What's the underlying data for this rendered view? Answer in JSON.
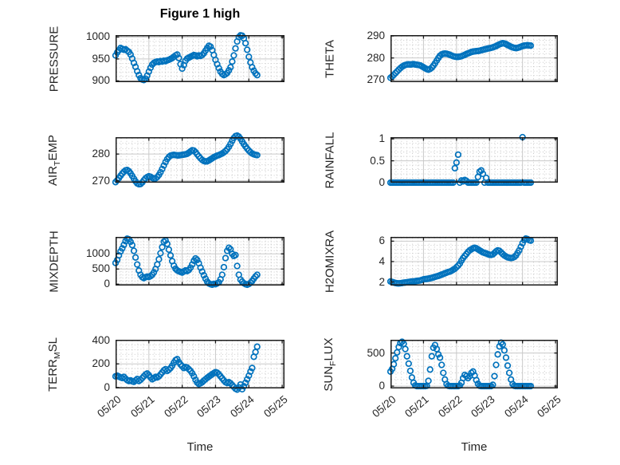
{
  "figure": {
    "title": "Figure 1 high",
    "xlabel": "Time",
    "marker_color": "#0072BD",
    "axis_color": "#1b1b1b",
    "grid_color": "#c9c9c9",
    "minor_grid_color": "#c4c4c4",
    "text_color": "#262626",
    "background": "#ffffff"
  },
  "chart_data": {
    "type": "scatter",
    "layout": "4x2-subplots",
    "marker": "open-circle",
    "grid": "major solid + dotted minor",
    "legend": "none",
    "x_unit": "days since 05/20",
    "xlim": [
      0,
      5.07
    ],
    "xticks": [
      0,
      1,
      2,
      3,
      4,
      5
    ],
    "xticklabels": [
      "05/20",
      "05/21",
      "05/22",
      "05/23",
      "05/24",
      "05/25"
    ],
    "x": [
      0,
      0.05,
      0.1,
      0.15,
      0.2,
      0.25,
      0.3,
      0.35,
      0.4,
      0.45,
      0.5,
      0.55,
      0.6,
      0.65,
      0.7,
      0.75,
      0.8,
      0.85,
      0.9,
      0.95,
      1,
      1.05,
      1.1,
      1.15,
      1.2,
      1.25,
      1.3,
      1.35,
      1.4,
      1.45,
      1.5,
      1.55,
      1.6,
      1.65,
      1.7,
      1.75,
      1.8,
      1.85,
      1.9,
      1.95,
      2,
      2.05,
      2.1,
      2.15,
      2.2,
      2.25,
      2.3,
      2.35,
      2.4,
      2.45,
      2.5,
      2.55,
      2.6,
      2.65,
      2.7,
      2.75,
      2.8,
      2.85,
      2.9,
      2.95,
      3,
      3.05,
      3.1,
      3.15,
      3.2,
      3.25,
      3.3,
      3.35,
      3.4,
      3.45,
      3.5,
      3.55,
      3.6,
      3.65,
      3.7,
      3.75,
      3.8,
      3.85,
      3.9,
      3.95,
      4,
      4.05,
      4.1,
      4.15,
      4.2,
      4.25
    ],
    "subplots": [
      {
        "name": "PRESSURE",
        "ylabel_pre": "PRESSURE",
        "ylabel_sub": "",
        "ylabel_post": "",
        "yticks": [
          900,
          950,
          1000
        ],
        "ylim": [
          897,
          1004.5
        ],
        "minor_step": 10,
        "y": [
          958,
          965,
          970,
          975,
          973,
          971,
          972,
          969,
          966,
          960,
          951,
          941,
          932,
          922,
          913,
          906,
          903,
          902,
          905,
          912,
          921,
          930,
          937,
          941,
          943,
          944,
          943,
          945,
          944,
          946,
          945,
          947,
          948,
          950,
          952,
          955,
          958,
          960,
          952,
          938,
          928,
          936,
          946,
          951,
          953,
          955,
          957,
          959,
          958,
          956,
          958,
          957,
          959,
          963,
          969,
          975,
          980,
          978,
          970,
          959,
          948,
          938,
          929,
          921,
          916,
          913,
          915,
          918,
          924,
          931,
          944,
          958,
          974,
          990,
          1000,
          1004,
          1003,
          997,
          986,
          971,
          955,
          942,
          931,
          923,
          917,
          913
        ]
      },
      {
        "name": "THETA",
        "ylabel_pre": "THETA",
        "ylabel_sub": "",
        "ylabel_post": "",
        "yticks": [
          270,
          280,
          290
        ],
        "ylim": [
          269,
          290.4
        ],
        "minor_step": 2,
        "y": [
          271,
          271.6,
          272.3,
          273.1,
          273.9,
          274.7,
          275.4,
          276,
          276.5,
          276.8,
          277,
          277.1,
          277,
          277.1,
          277.2,
          277,
          276.9,
          276.8,
          276.6,
          276.2,
          275.8,
          275.3,
          274.9,
          274.7,
          275,
          275.6,
          276.5,
          277.6,
          278.8,
          280,
          281,
          281.6,
          281.9,
          282,
          281.9,
          281.7,
          281.4,
          281.1,
          280.8,
          280.6,
          280.5,
          280.5,
          280.6,
          280.8,
          281.1,
          281.4,
          281.8,
          282.1,
          282.4,
          282.7,
          282.9,
          283,
          283.1,
          283.2,
          283.3,
          283.5,
          283.7,
          283.9,
          284.1,
          284.3,
          284.4,
          284.6,
          284.8,
          285.1,
          285.4,
          285.8,
          286.2,
          286.5,
          286.7,
          286.6,
          286.3,
          285.9,
          285.5,
          285.1,
          284.8,
          284.6,
          284.5,
          284.6,
          284.8,
          285.1,
          285.4,
          285.6,
          285.7,
          285.8,
          285.7,
          285.6
        ]
      },
      {
        "name": "AIR_TEMP",
        "ylabel_pre": "AIR",
        "ylabel_sub": "T",
        "ylabel_post": "EMP",
        "yticks": [
          270,
          280
        ],
        "ylim": [
          269.3,
          286.3
        ],
        "minor_step": 2,
        "y": [
          269.5,
          270.2,
          271,
          271.9,
          272.7,
          273.4,
          273.9,
          274,
          273.6,
          272.8,
          271.8,
          270.8,
          269.8,
          269,
          268.7,
          268.8,
          269.4,
          270.2,
          270.9,
          271.4,
          271.7,
          271.5,
          271.1,
          270.8,
          270.9,
          271.4,
          272.2,
          273.2,
          274.4,
          275.7,
          277,
          278.1,
          278.9,
          279.4,
          279.6,
          279.7,
          279.6,
          279.5,
          279.5,
          279.6,
          279.7,
          279.8,
          279.9,
          280.1,
          280.5,
          281,
          281.4,
          281.3,
          280.7,
          279.9,
          279.1,
          278.4,
          277.8,
          277.4,
          277.2,
          277.3,
          277.6,
          278,
          278.4,
          278.8,
          279.1,
          279.4,
          279.6,
          279.9,
          280.2,
          280.6,
          281.1,
          281.8,
          282.7,
          283.8,
          285,
          286,
          286.7,
          286.9,
          286.5,
          285.7,
          284.7,
          283.7,
          282.8,
          282,
          281.3,
          280.7,
          280.2,
          279.9,
          279.7,
          279.6
        ]
      },
      {
        "name": "RAINFALL",
        "ylabel_pre": "RAINFALL",
        "ylabel_sub": "",
        "ylabel_post": "",
        "yticks": [
          0,
          0.5,
          1
        ],
        "ylim": [
          0,
          1.04
        ],
        "minor_step": 0.1,
        "y": [
          0,
          0,
          0,
          0,
          0,
          0,
          0,
          0,
          0,
          0,
          0,
          0,
          0,
          0,
          0,
          0,
          0,
          0,
          0,
          0,
          0,
          0,
          0,
          0,
          0,
          0,
          0,
          0,
          0,
          0,
          0,
          0,
          0,
          0,
          0,
          0,
          0,
          0,
          0,
          0.33,
          0.46,
          0.64,
          0,
          0.05,
          0.03,
          0.06,
          0.04,
          0,
          0,
          0,
          0,
          0,
          0,
          0.13,
          0.25,
          0.28,
          0.2,
          0,
          0.11,
          0,
          0,
          0,
          0,
          0,
          0,
          0,
          0,
          0,
          0,
          0,
          0,
          0,
          0,
          0,
          0,
          0,
          0,
          0,
          0,
          0,
          1.04,
          0,
          0,
          0,
          0,
          0
        ]
      },
      {
        "name": "MIXDEPTH",
        "ylabel_pre": "MIXDEPTH",
        "ylabel_sub": "",
        "ylabel_post": "",
        "yticks": [
          0,
          500,
          1000
        ],
        "ylim": [
          -45,
          1560
        ],
        "minor_step": 100,
        "y": [
          700,
          800,
          950,
          1080,
          1180,
          1300,
          1420,
          1500,
          1480,
          1400,
          1290,
          1100,
          880,
          650,
          450,
          310,
          230,
          200,
          230,
          250,
          240,
          265,
          310,
          390,
          500,
          650,
          820,
          1020,
          1220,
          1400,
          1440,
          1330,
          1140,
          950,
          760,
          610,
          510,
          455,
          425,
          405,
          385,
          420,
          455,
          435,
          470,
          545,
          650,
          775,
          850,
          800,
          690,
          545,
          415,
          295,
          180,
          85,
          25,
          0,
          -15,
          10,
          0,
          25,
          60,
          160,
          310,
          560,
          860,
          1100,
          1200,
          1150,
          1000,
          930,
          960,
          600,
          310,
          150,
          80,
          30,
          0,
          -20,
          5,
          45,
          105,
          185,
          255,
          310
        ]
      },
      {
        "name": "H2OMIXRA",
        "ylabel_pre": "H2OMIXRA",
        "ylabel_sub": "",
        "ylabel_post": "",
        "yticks": [
          2,
          4,
          6
        ],
        "ylim": [
          1.65,
          6.42
        ],
        "minor_step": 0.4,
        "y": [
          2.05,
          2,
          1.95,
          1.9,
          1.87,
          1.86,
          1.88,
          1.9,
          1.93,
          1.95,
          1.97,
          2,
          2.02,
          2.05,
          2.05,
          2.08,
          2.1,
          2.12,
          2.15,
          2.2,
          2.25,
          2.28,
          2.3,
          2.33,
          2.36,
          2.4,
          2.45,
          2.5,
          2.55,
          2.6,
          2.65,
          2.72,
          2.78,
          2.85,
          2.92,
          2.98,
          3.02,
          3.1,
          3.2,
          3.3,
          3.45,
          3.6,
          3.8,
          4.1,
          4.35,
          4.55,
          4.75,
          4.95,
          5.1,
          5.2,
          5.3,
          5.35,
          5.3,
          5.2,
          5.1,
          5,
          4.9,
          4.85,
          4.8,
          4.72,
          4.67,
          4.65,
          4.7,
          4.85,
          5,
          5.1,
          5.05,
          4.9,
          4.75,
          4.6,
          4.5,
          4.42,
          4.38,
          4.35,
          4.38,
          4.45,
          4.6,
          4.85,
          5.1,
          5.45,
          5.8,
          6.1,
          6.25,
          6.2,
          6.1,
          6.05
        ]
      },
      {
        "name": "TERR_MSL",
        "ylabel_pre": "TERR",
        "ylabel_sub": "M",
        "ylabel_post": "SL",
        "yticks": [
          0,
          200,
          400
        ],
        "ylim": [
          -8,
          404
        ],
        "minor_step": 40,
        "y": [
          95,
          100,
          92,
          85,
          80,
          90,
          75,
          62,
          55,
          60,
          52,
          48,
          60,
          72,
          55,
          65,
          80,
          95,
          110,
          118,
          105,
          85,
          70,
          78,
          90,
          85,
          95,
          110,
          128,
          145,
          155,
          140,
          150,
          165,
          185,
          210,
          232,
          240,
          215,
          195,
          180,
          165,
          172,
          168,
          155,
          140,
          120,
          95,
          65,
          42,
          30,
          35,
          45,
          58,
          70,
          82,
          92,
          102,
          112,
          122,
          130,
          125,
          112,
          95,
          78,
          60,
          45,
          38,
          45,
          35,
          20,
          5,
          -10,
          -18,
          0,
          25,
          -15,
          10,
          40,
          70,
          100,
          135,
          165,
          260,
          300,
          345
        ]
      },
      {
        "name": "SUN_FLUX",
        "ylabel_pre": "SUN",
        "ylabel_sub": "F",
        "ylabel_post": "LUX",
        "yticks": [
          0,
          500
        ],
        "ylim": [
          -35,
          700
        ],
        "minor_step": 100,
        "y": [
          220,
          260,
          330,
          420,
          510,
          590,
          650,
          670,
          640,
          560,
          450,
          340,
          230,
          130,
          50,
          10,
          0,
          0,
          0,
          0,
          0,
          0,
          5,
          80,
          250,
          450,
          580,
          620,
          560,
          480,
          430,
          320,
          200,
          100,
          30,
          5,
          0,
          0,
          0,
          0,
          0,
          0,
          10,
          50,
          120,
          170,
          150,
          120,
          150,
          200,
          220,
          160,
          90,
          35,
          5,
          0,
          0,
          0,
          0,
          0,
          0,
          0,
          20,
          150,
          320,
          480,
          600,
          655,
          630,
          540,
          430,
          310,
          200,
          100,
          30,
          5,
          0,
          0,
          0,
          0,
          0,
          0,
          0,
          0,
          0,
          0
        ]
      }
    ]
  }
}
